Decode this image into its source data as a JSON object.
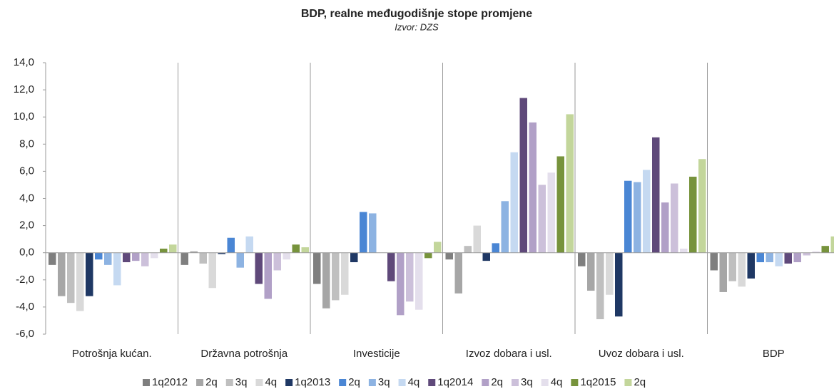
{
  "chart_data": {
    "type": "bar",
    "title": "BDP, realne međugodišnje stope promjene",
    "subtitle": "Izvor: DZS",
    "categories": [
      "Potrošnja kućan.",
      "Državna potrošnja",
      "Investicije",
      "Izvoz dobara i usl.",
      "Uvoz dobara i usl.",
      "BDP"
    ],
    "series": [
      {
        "name": "1q2012",
        "color": "#7f7f7f",
        "values": [
          -0.9,
          -0.9,
          -2.3,
          -0.5,
          -1.0,
          -1.3
        ]
      },
      {
        "name": "2q",
        "color": "#a6a6a6",
        "values": [
          -3.2,
          0.1,
          -4.1,
          -3.0,
          -2.8,
          -2.9
        ]
      },
      {
        "name": "3q",
        "color": "#bfbfbf",
        "values": [
          -3.7,
          -0.8,
          -3.5,
          0.5,
          -4.9,
          -2.1
        ]
      },
      {
        "name": "4q",
        "color": "#d9d9d9",
        "values": [
          -4.3,
          -2.6,
          -3.1,
          2.0,
          -3.1,
          -2.5
        ]
      },
      {
        "name": "1q2013",
        "color": "#1f3864",
        "values": [
          -3.2,
          -0.1,
          -0.7,
          -0.6,
          -4.7,
          -1.9
        ]
      },
      {
        "name": "2q",
        "color": "#4a86d4",
        "values": [
          -0.5,
          1.1,
          3.0,
          0.7,
          5.3,
          -0.7
        ]
      },
      {
        "name": "3q",
        "color": "#8db3e2",
        "values": [
          -0.9,
          -1.1,
          2.9,
          3.8,
          5.2,
          -0.7
        ]
      },
      {
        "name": "4q",
        "color": "#c5d9f1",
        "values": [
          -2.4,
          1.2,
          0.0,
          7.4,
          6.1,
          -1.0
        ]
      },
      {
        "name": "1q2014",
        "color": "#5f497a",
        "values": [
          -0.7,
          -2.3,
          -2.1,
          11.4,
          8.5,
          -0.8
        ]
      },
      {
        "name": "2q",
        "color": "#b1a0c7",
        "values": [
          -0.6,
          -3.4,
          -4.6,
          9.6,
          3.7,
          -0.7
        ]
      },
      {
        "name": "3q",
        "color": "#ccc0da",
        "values": [
          -1.0,
          -1.3,
          -3.6,
          5.0,
          5.1,
          -0.2
        ]
      },
      {
        "name": "4q",
        "color": "#e4dfec",
        "values": [
          -0.4,
          -0.5,
          -4.2,
          5.9,
          0.3,
          0.1
        ]
      },
      {
        "name": "1q2015",
        "color": "#77933c",
        "values": [
          0.3,
          0.6,
          -0.4,
          7.1,
          5.6,
          0.5
        ]
      },
      {
        "name": "2q",
        "color": "#c3d69b",
        "values": [
          0.6,
          0.4,
          0.8,
          10.2,
          6.9,
          1.2
        ]
      }
    ],
    "ylim": [
      -6,
      14
    ],
    "yticks": [
      {
        "value": -6,
        "label": "-6,0"
      },
      {
        "value": -4,
        "label": "-4,0"
      },
      {
        "value": -2,
        "label": "-2,0"
      },
      {
        "value": 0,
        "label": "0,0"
      },
      {
        "value": 2,
        "label": "2,0"
      },
      {
        "value": 4,
        "label": "4,0"
      },
      {
        "value": 6,
        "label": "6,0"
      },
      {
        "value": 8,
        "label": "8,0"
      },
      {
        "value": 10,
        "label": "10,0"
      },
      {
        "value": 12,
        "label": "12,0"
      },
      {
        "value": 14,
        "label": "14,0"
      }
    ],
    "legend": "bottom"
  }
}
